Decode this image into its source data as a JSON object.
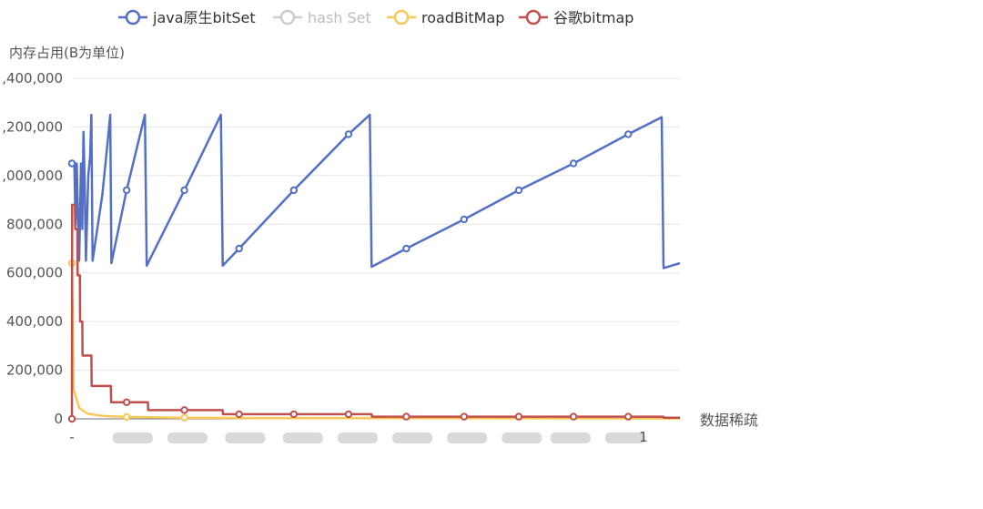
{
  "chart_data": {
    "type": "line",
    "ylabel": "内存占用(B为单位)",
    "xlabel": "数据稀疏",
    "y_ticks": [
      0,
      200000,
      400000,
      600000,
      800000,
      1000000,
      1200000,
      1400000
    ],
    "y_tick_labels": [
      "0",
      "200,000",
      "400,000",
      "600,000",
      "800,000",
      ",000,000",
      ",200,000",
      ",400,000"
    ],
    "ylim": [
      0,
      1400000
    ],
    "xlim": [
      0,
      100
    ],
    "x_label_values": [
      10,
      19,
      28.5,
      38,
      47,
      56,
      65,
      74,
      82,
      91
    ],
    "first_x_label": "-",
    "last_x_label": "1",
    "grid": true,
    "legend_position": "top",
    "series": [
      {
        "name": "java原生bitSet",
        "color": "#5470c6",
        "visible": true,
        "points": [
          [
            0,
            1050000
          ],
          [
            0.4,
            1050000
          ],
          [
            0.6,
            800000
          ],
          [
            0.8,
            1050000
          ],
          [
            1.0,
            830000
          ],
          [
            1.2,
            650000
          ],
          [
            1.5,
            1050000
          ],
          [
            1.7,
            780000
          ],
          [
            1.9,
            1180000
          ],
          [
            2.1,
            980000
          ],
          [
            2.3,
            650000
          ],
          [
            2.7,
            1000000
          ],
          [
            3.0,
            1080000
          ],
          [
            3.2,
            1250000
          ],
          [
            3.4,
            650000
          ],
          [
            5.0,
            920000
          ],
          [
            6.0,
            1170000
          ],
          [
            6.3,
            1250000
          ],
          [
            6.5,
            640000
          ],
          [
            9.0,
            940000
          ],
          [
            12.0,
            1250000
          ],
          [
            12.3,
            630000
          ],
          [
            18.5,
            940000
          ],
          [
            24.5,
            1250000
          ],
          [
            24.8,
            630000
          ],
          [
            27.5,
            700000
          ],
          [
            36.5,
            940000
          ],
          [
            45.5,
            1170000
          ],
          [
            49.0,
            1250000
          ],
          [
            49.3,
            625000
          ],
          [
            55.0,
            700000
          ],
          [
            64.5,
            820000
          ],
          [
            73.5,
            940000
          ],
          [
            82.5,
            1050000
          ],
          [
            91.5,
            1170000
          ],
          [
            97.0,
            1240000
          ],
          [
            97.3,
            620000
          ],
          [
            100,
            640000
          ]
        ],
        "markers": [
          [
            0,
            1050000
          ],
          [
            9.0,
            940000
          ],
          [
            18.5,
            940000
          ],
          [
            27.5,
            700000
          ],
          [
            36.5,
            940000
          ],
          [
            45.5,
            1170000
          ],
          [
            55.0,
            700000
          ],
          [
            64.5,
            820000
          ],
          [
            73.5,
            940000
          ],
          [
            82.5,
            1050000
          ],
          [
            91.5,
            1170000
          ]
        ]
      },
      {
        "name": "hash Set",
        "color": "#bbbbbb",
        "visible": false,
        "points": [],
        "markers": []
      },
      {
        "name": "roadBitMap",
        "color": "#fac858",
        "visible": true,
        "points": [
          [
            0,
            640000
          ],
          [
            0.3,
            120000
          ],
          [
            1.2,
            45000
          ],
          [
            2.5,
            22000
          ],
          [
            5,
            12000
          ],
          [
            9,
            8000
          ],
          [
            18,
            5000
          ],
          [
            30,
            3000
          ],
          [
            100,
            1500
          ]
        ],
        "markers": [
          [
            0,
            640000
          ],
          [
            9,
            8000
          ],
          [
            18.5,
            5000
          ]
        ]
      },
      {
        "name": "谷歌bitmap",
        "color": "#c0504d",
        "visible": true,
        "points": [
          [
            0,
            0
          ],
          [
            0.05,
            880000
          ],
          [
            0.5,
            880000
          ],
          [
            0.55,
            780000
          ],
          [
            0.9,
            780000
          ],
          [
            0.95,
            590000
          ],
          [
            1.3,
            590000
          ],
          [
            1.35,
            400000
          ],
          [
            1.7,
            400000
          ],
          [
            1.75,
            260000
          ],
          [
            3.2,
            260000
          ],
          [
            3.25,
            135000
          ],
          [
            6.4,
            135000
          ],
          [
            6.45,
            68000
          ],
          [
            12.5,
            68000
          ],
          [
            12.55,
            36000
          ],
          [
            24.8,
            36000
          ],
          [
            24.85,
            19000
          ],
          [
            49.3,
            19000
          ],
          [
            49.35,
            9000
          ],
          [
            97.3,
            9000
          ],
          [
            97.35,
            5000
          ],
          [
            100,
            5000
          ]
        ],
        "markers": [
          [
            0,
            0
          ],
          [
            9,
            68000
          ],
          [
            18.5,
            36000
          ],
          [
            27.5,
            19000
          ],
          [
            36.5,
            19000
          ],
          [
            45.5,
            19000
          ],
          [
            55,
            9000
          ],
          [
            64.5,
            9000
          ],
          [
            73.5,
            9000
          ],
          [
            82.5,
            9000
          ],
          [
            91.5,
            9000
          ]
        ]
      }
    ]
  }
}
